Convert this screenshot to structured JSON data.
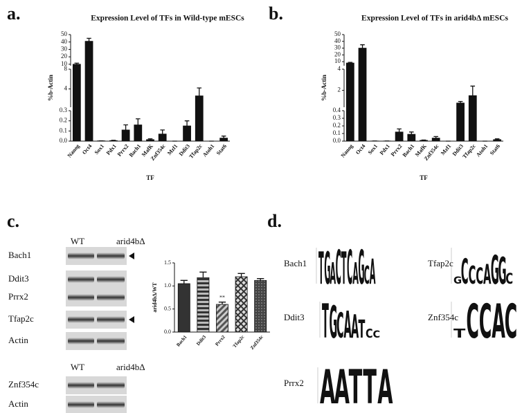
{
  "panel_labels": [
    "a.",
    "b.",
    "c.",
    "d."
  ],
  "chart_data": [
    {
      "type": "bar",
      "title": "Expression Level of TFs in Wild-type mESCs",
      "xlabel": "TF",
      "ylabel": "%b-Actin",
      "categories": [
        "Nanog",
        "Oct4",
        "Sox1",
        "Pdx1",
        "Prrx2",
        "Bach1",
        "MafK",
        "Znf354c",
        "Mzf1",
        "Ddit3",
        "Tfap2c",
        "Atoh1",
        "Stat6"
      ],
      "values": [
        10,
        41,
        0.003,
        0.005,
        0.11,
        0.16,
        0.015,
        0.07,
        0,
        0.15,
        2.6,
        0,
        0.03
      ],
      "errors": [
        1.5,
        4,
        0,
        0.003,
        0.05,
        0.06,
        0.008,
        0.04,
        0,
        0.05,
        1.6,
        0,
        0.02
      ],
      "color": "#111111",
      "y_segments": [
        {
          "ylim": [
            0,
            0.3
          ],
          "yticks": [
            {
              "value": 0,
              "label": "0.0"
            },
            0.1,
            0.2,
            0.3
          ]
        },
        {
          "ylim": [
            0.3,
            8
          ],
          "yticks": [
            4,
            8
          ]
        },
        {
          "ylim": [
            8,
            50
          ],
          "yticks": [
            10,
            20,
            30,
            40,
            50
          ]
        }
      ]
    },
    {
      "type": "bar",
      "title": "Expression Level of TFs in arid4bΔ mESCs",
      "xlabel": "TF",
      "ylabel": "%b-Actin",
      "categories": [
        "Nanog",
        "Oct4",
        "Sox1",
        "Pdx1",
        "Prrx2",
        "Bach1",
        "MafK",
        "Znf354c",
        "Mzf1",
        "Ddit3",
        "Tfap2c",
        "Atoh1",
        "Stat6"
      ],
      "values": [
        8,
        30,
        0.002,
        0.002,
        0.12,
        0.09,
        0.01,
        0.04,
        0,
        0.8,
        1.5,
        0,
        0.02
      ],
      "errors": [
        1,
        5,
        0,
        0,
        0.04,
        0.03,
        0.005,
        0.02,
        0,
        0.15,
        0.9,
        0,
        0.01
      ],
      "color": "#111111",
      "y_segments": [
        {
          "ylim": [
            0,
            0.4
          ],
          "yticks": [
            {
              "value": 0,
              "label": "0.0"
            },
            0.1,
            0.2,
            0.3,
            0.4
          ]
        },
        {
          "ylim": [
            0.4,
            4
          ],
          "yticks": [
            2,
            4
          ]
        },
        {
          "ylim": [
            4,
            50
          ],
          "yticks": [
            10,
            20,
            30,
            40,
            50
          ]
        }
      ]
    },
    {
      "type": "bar",
      "ylabel": "arid4bΔ/WT",
      "categories": [
        "Bach1",
        "Ddit3",
        "Prrx2",
        "Tfap2c",
        "Znf354c"
      ],
      "values": [
        1.05,
        1.18,
        0.6,
        1.2,
        1.12
      ],
      "errors": [
        0.07,
        0.12,
        0.05,
        0.07,
        0.04
      ],
      "color": "#333333",
      "patterns": [
        "solid",
        "horizontal",
        "diagonal",
        "crosshatch",
        "dots"
      ],
      "ylim": [
        0,
        1.5
      ],
      "yticks": [
        {
          "value": 0,
          "label": "0.0"
        },
        0.5,
        {
          "value": 1,
          "label": "1.0"
        },
        1.5
      ],
      "annotations": [
        {
          "text": "**",
          "x": "Prrx2"
        }
      ]
    }
  ],
  "blot": {
    "top": {
      "columns": [
        "WT",
        "arid4bΔ"
      ],
      "rows": [
        "Bach1",
        "Ddit3",
        "Prrx2",
        "Tfap2c",
        "Actin"
      ]
    },
    "bottom": {
      "columns": [
        "WT",
        "arid4bΔ"
      ],
      "rows": [
        "Znf354c",
        "Actin"
      ]
    }
  },
  "logos": {
    "ylim": [
      0,
      2
    ],
    "letter_colors": {
      "A": "#1f9e3a",
      "C": "#1f4fa8",
      "G": "#e8a317",
      "T": "#d62728"
    },
    "motifs": [
      {
        "name": "Bach1",
        "letters": [
          "T",
          "G",
          "A",
          "C",
          "T",
          "C",
          "A",
          "G",
          "C",
          "A"
        ],
        "heights": [
          1.8,
          1.8,
          1.2,
          1.9,
          1.8,
          1.9,
          1.2,
          1.9,
          1.0,
          1.4
        ]
      },
      {
        "name": "Tfap2c",
        "letters": [
          "G",
          "C",
          "C",
          "C",
          "A",
          "G",
          "G",
          "C"
        ],
        "heights": [
          0.4,
          1.4,
          1.0,
          0.9,
          1.1,
          1.6,
          1.5,
          0.6
        ]
      },
      {
        "name": "Ddit3",
        "letters": [
          "T",
          "G",
          "C",
          "A",
          "A",
          "T",
          "C",
          "C"
        ],
        "heights": [
          1.9,
          1.8,
          1.4,
          1.5,
          1.3,
          1.0,
          0.5,
          0.4
        ]
      },
      {
        "name": "Znf354c",
        "letters": [
          "T",
          "C",
          "C",
          "A",
          "C"
        ],
        "heights": [
          0.5,
          1.9,
          1.9,
          1.9,
          1.9
        ]
      },
      {
        "name": "Prrx2",
        "letters": [
          "A",
          "A",
          "T",
          "T",
          "A"
        ],
        "heights": [
          1.9,
          1.9,
          1.9,
          1.9,
          1.9
        ]
      }
    ]
  }
}
